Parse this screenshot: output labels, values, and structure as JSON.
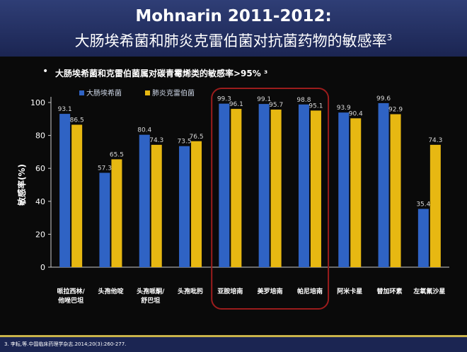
{
  "header": {
    "title_line1": "Mohnarin 2011-2012:",
    "title_line2": "大肠埃希菌和肺炎克雷伯菌对抗菌药物的敏感率",
    "title_sup": "3"
  },
  "bullet": "大肠埃希菌和克雷伯菌属对碳青霉烯类的敏感率>95% ³",
  "footer": "3. 李耘,等.中国临床药理学杂志.2014;20(3):260-277.",
  "colors": {
    "series1": "#2f63c4",
    "series2": "#e7b812",
    "highlight": "#9b1c1c"
  },
  "chart_data": {
    "type": "bar",
    "ylabel": "敏感率(%)",
    "ylim": [
      0,
      100
    ],
    "yticks": [
      0,
      20,
      40,
      60,
      80,
      100
    ],
    "categories": [
      [
        "哌拉西林/",
        "他唑巴坦"
      ],
      [
        "头孢他啶"
      ],
      [
        "头孢哌酮/",
        "舒巴坦"
      ],
      [
        "头孢吡肟"
      ],
      [
        "亚胺培南"
      ],
      [
        "美罗培南"
      ],
      [
        "帕尼培南"
      ],
      [
        "阿米卡星"
      ],
      [
        "替加环素"
      ],
      [
        "左氧氟沙星"
      ]
    ],
    "series": [
      {
        "name": "大肠埃希菌",
        "values": [
          93.1,
          57.3,
          80.4,
          73.5,
          99.3,
          99.1,
          98.8,
          93.9,
          99.6,
          35.4
        ]
      },
      {
        "name": "肺炎克雷伯菌",
        "values": [
          86.5,
          65.5,
          74.3,
          76.5,
          96.1,
          95.7,
          95.1,
          90.4,
          92.9,
          74.3
        ]
      }
    ],
    "highlight_categories": [
      4,
      5,
      6
    ]
  }
}
